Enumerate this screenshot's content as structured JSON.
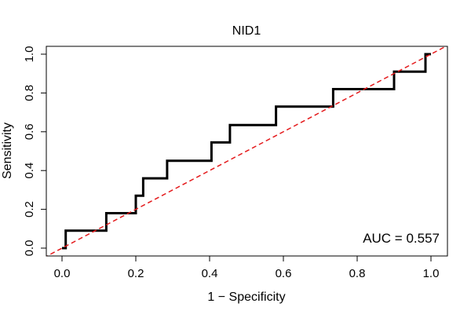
{
  "chart_data": {
    "type": "line",
    "title": "NID1",
    "xlabel": "1 − Specificity",
    "ylabel": "Sensitivity",
    "xlim": [
      0,
      1
    ],
    "ylim": [
      0,
      1
    ],
    "x_ticks": [
      0.0,
      0.2,
      0.4,
      0.6,
      0.8,
      1.0
    ],
    "x_tick_labels": [
      "0.0",
      "0.2",
      "0.4",
      "0.6",
      "0.8",
      "1.0"
    ],
    "y_ticks": [
      0.0,
      0.2,
      0.4,
      0.6,
      0.8,
      1.0
    ],
    "y_tick_labels": [
      "0.0",
      "0.2",
      "0.4",
      "0.6",
      "0.8",
      "1.0"
    ],
    "grid": false,
    "annotation": "AUC = 0.557",
    "annotation_position": "bottom-right",
    "series": [
      {
        "style": "solid",
        "color": "#000000",
        "x": [
          0.0,
          0.01,
          0.01,
          0.12,
          0.12,
          0.2,
          0.2,
          0.21,
          0.21,
          0.22,
          0.22,
          0.285,
          0.285,
          0.405,
          0.405,
          0.455,
          0.455,
          0.58,
          0.58,
          0.735,
          0.735,
          0.9,
          0.9,
          0.985,
          0.985,
          1.0
        ],
        "y": [
          0.0,
          0.0,
          0.09,
          0.09,
          0.18,
          0.18,
          0.27,
          0.27,
          0.27,
          0.27,
          0.36,
          0.36,
          0.45,
          0.45,
          0.545,
          0.545,
          0.635,
          0.635,
          0.73,
          0.73,
          0.82,
          0.82,
          0.91,
          0.91,
          1.0,
          1.0
        ]
      },
      {
        "style": "dashed",
        "color": "#e41a1c",
        "x": [
          -0.05,
          1.05
        ],
        "y": [
          -0.05,
          1.05
        ]
      }
    ]
  }
}
